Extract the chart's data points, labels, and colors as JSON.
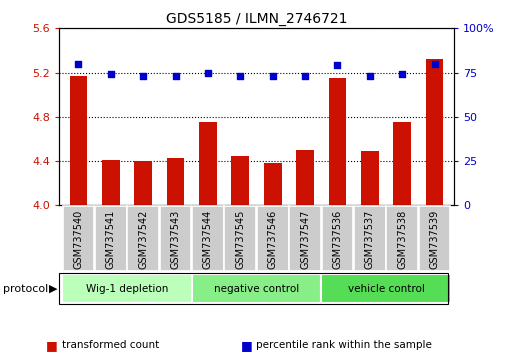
{
  "title": "GDS5185 / ILMN_2746721",
  "samples": [
    "GSM737540",
    "GSM737541",
    "GSM737542",
    "GSM737543",
    "GSM737544",
    "GSM737545",
    "GSM737546",
    "GSM737547",
    "GSM737536",
    "GSM737537",
    "GSM737538",
    "GSM737539"
  ],
  "transformed_counts": [
    5.17,
    4.41,
    4.4,
    4.43,
    4.75,
    4.45,
    4.38,
    4.5,
    5.15,
    4.49,
    4.75,
    5.32
  ],
  "percentile_ranks": [
    80,
    74,
    73,
    73,
    75,
    73,
    73,
    73,
    79,
    73,
    74,
    80
  ],
  "ylim_left": [
    4.0,
    5.6
  ],
  "ylim_right": [
    0,
    100
  ],
  "yticks_left": [
    4.0,
    4.4,
    4.8,
    5.2,
    5.6
  ],
  "yticks_right": [
    0,
    25,
    50,
    75,
    100
  ],
  "bar_color": "#cc1100",
  "dot_color": "#0000cc",
  "groups": [
    {
      "label": "Wig-1 depletion",
      "start": 0,
      "end": 4,
      "color": "#bbffbb"
    },
    {
      "label": "negative control",
      "start": 4,
      "end": 8,
      "color": "#88ee88"
    },
    {
      "label": "vehicle control",
      "start": 8,
      "end": 12,
      "color": "#55dd55"
    }
  ],
  "legend_items": [
    {
      "label": "transformed count",
      "color": "#cc1100"
    },
    {
      "label": "percentile rank within the sample",
      "color": "#0000cc"
    }
  ],
  "protocol_label": "protocol",
  "grid_linestyle": "dotted",
  "grid_color": "black",
  "bar_width": 0.55,
  "xtick_box_color": "#cccccc",
  "figsize": [
    5.13,
    3.54
  ],
  "dpi": 100
}
